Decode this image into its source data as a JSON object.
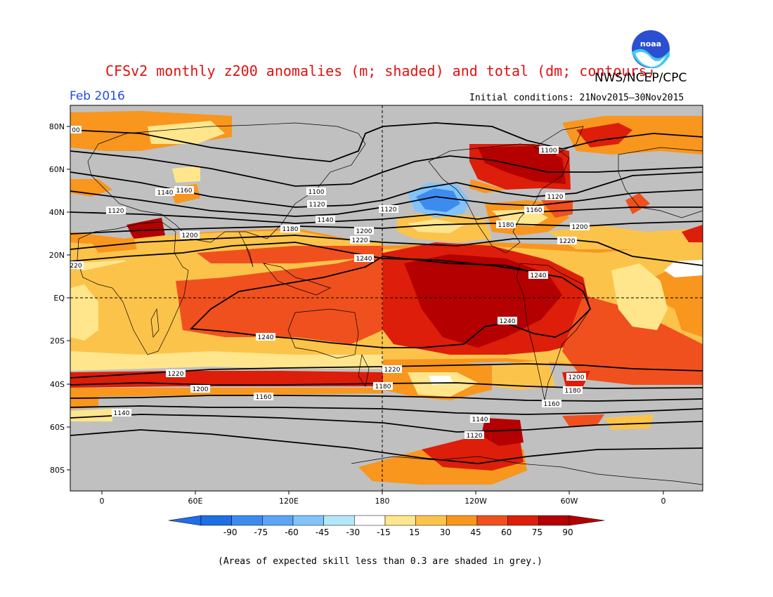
{
  "title": "CFSv2 monthly z200 anomalies (m; shaded) and total (dm; contours)",
  "agency": "NWS/NCEP/CPC",
  "month": "Feb 2016",
  "initial_conditions": "Initial conditions: 21Nov2015–30Nov2015",
  "footnote": "(Areas of expected skill less than 0.3 are shaded in grey.)",
  "logo": {
    "text": "noaa",
    "icon": "noaa-logo-icon"
  },
  "axes": {
    "lat_labels": [
      "80N",
      "60N",
      "40N",
      "20N",
      "EQ",
      "20S",
      "40S",
      "60S",
      "80S"
    ],
    "lon_labels": [
      "0",
      "60E",
      "120E",
      "180",
      "120W",
      "60W",
      "0"
    ]
  },
  "colorbar": {
    "labels": [
      "-90",
      "-75",
      "-60",
      "-45",
      "-30",
      "-15",
      "15",
      "30",
      "45",
      "60",
      "75",
      "90"
    ],
    "colors": [
      "#1e6ee6",
      "#3c8cf0",
      "#5aa5f5",
      "#82c3fa",
      "#b4e6fa",
      "#ffffff",
      "#ffe68c",
      "#fcc34b",
      "#f8961e",
      "#f0501e",
      "#dc1e0a",
      "#b40000"
    ]
  },
  "colors": {
    "grey": "#c0c0c0",
    "title": "#e01010",
    "month": "#1f4de0"
  },
  "contours": [
    {
      "label": "1240"
    },
    {
      "label": "1220"
    },
    {
      "label": "1200"
    },
    {
      "label": "1180"
    },
    {
      "label": "1160"
    },
    {
      "label": "1140"
    },
    {
      "label": "1120"
    },
    {
      "label": "1100"
    }
  ],
  "contour_labels": [
    "1240",
    "1240",
    "1240",
    "1240",
    "1220",
    "1220",
    "1220",
    "1220",
    "1200",
    "1200",
    "1200",
    "1200",
    "1200",
    "1180",
    "1180",
    "1180",
    "1180",
    "1160",
    "1160",
    "1160",
    "1160",
    "1140",
    "1140",
    "1140",
    "1140",
    "1120",
    "1120",
    "1120",
    "1120",
    "1120",
    "1100",
    "1100",
    "00",
    "220"
  ]
}
